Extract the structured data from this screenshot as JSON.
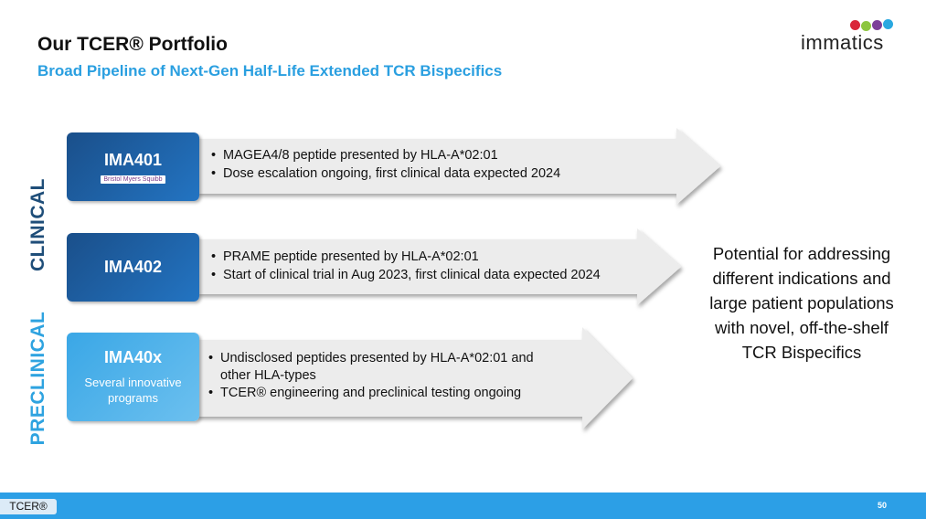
{
  "header": {
    "title": "Our TCER® Portfolio",
    "subtitle": "Broad Pipeline of Next-Gen Half-Life Extended TCR Bispecifics",
    "logo": "immatics"
  },
  "stages": [
    "CLINICAL",
    "PRECLINICAL"
  ],
  "programs": [
    {
      "name": "IMA401",
      "partner": "Bristol Myers Squibb",
      "bullets": [
        "MAGEA4/8 peptide presented by HLA-A*02:01",
        "Dose escalation ongoing, first clinical data expected 2024"
      ]
    },
    {
      "name": "IMA402",
      "bullets": [
        "PRAME peptide presented by HLA-A*02:01",
        "Start of clinical trial in Aug 2023, first clinical data expected 2024"
      ]
    },
    {
      "name": "IMA40x",
      "description": "Several innovative programs",
      "bullets": [
        "Undisclosed peptides presented by HLA-A*02:01 and other HLA-types",
        "TCER® engineering and preclinical testing ongoing"
      ]
    }
  ],
  "summary": "Potential for addressing different indications and large patient populations with novel, off-the-shelf TCR Bispecifics",
  "footer": {
    "tag": "TCER®",
    "page": "50"
  }
}
